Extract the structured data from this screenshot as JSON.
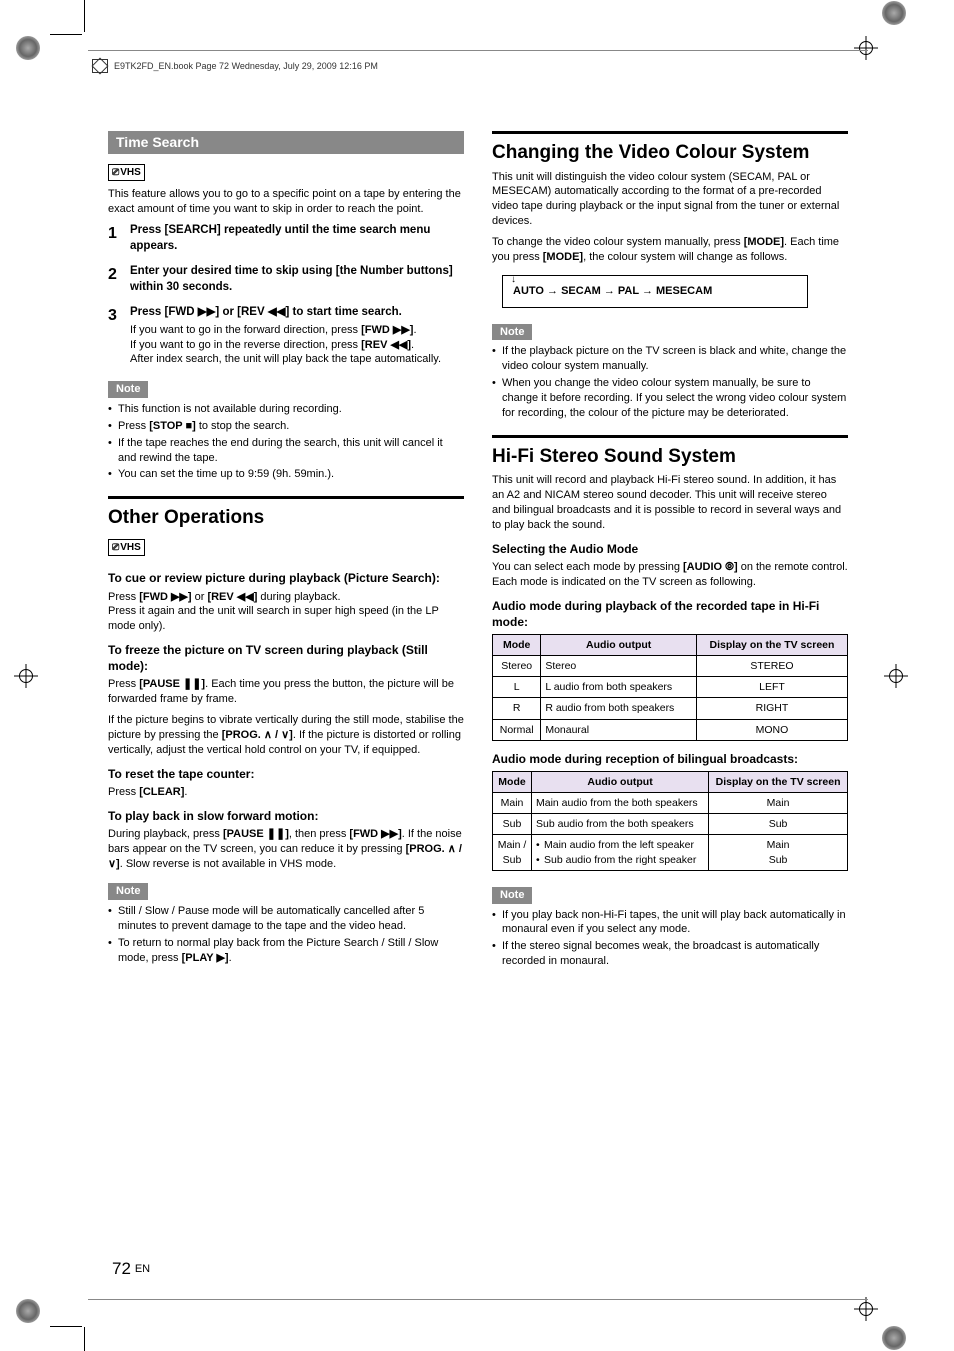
{
  "header": {
    "text": "E9TK2FD_EN.book   Page 72   Wednesday, July 29, 2009   12:16 PM"
  },
  "page": {
    "number": "72",
    "lang": "EN"
  },
  "left": {
    "time_search": {
      "heading": "Time Search",
      "vhs": "VHS",
      "intro": "This feature allows you to go to a specific point on a tape by entering the exact amount of time you want to skip in order to reach the point.",
      "steps": [
        {
          "num": "1",
          "title": "Press [SEARCH] repeatedly until the time search menu appears."
        },
        {
          "num": "2",
          "title": "Enter your desired time to skip using [the Number buttons] within 30 seconds."
        },
        {
          "num": "3",
          "title": "Press [FWD ▶▶] or [REV ◀◀] to start time search.",
          "detail1": "If you want to go in the forward direction, press ",
          "detail1_bold": "[FWD ▶▶]",
          "detail2a": "If you want to go in the reverse direction, press ",
          "detail2a_bold": "[REV ◀◀]",
          "detail2b": "After index search, the unit will play back the tape automatically."
        }
      ],
      "note_label": "Note",
      "notes": [
        "This function is not available during recording.",
        "Press [STOP ■] to stop the search.",
        "If the tape reaches the end during the search, this unit will cancel it and rewind the tape.",
        "You can set the time up to 9:59 (9h. 59min.)."
      ]
    },
    "other_ops": {
      "heading": "Other Operations",
      "vhs": "VHS",
      "cue": {
        "title": "To cue or review picture during playback (Picture Search):",
        "body1a": "Press ",
        "body1b": "[FWD ▶▶]",
        "body1c": " or ",
        "body1d": "[REV ◀◀]",
        "body1e": " during playback.",
        "body2": "Press it again and the unit will search in super high speed (in the LP mode only)."
      },
      "freeze": {
        "title": "To freeze the picture on TV screen during playback (Still mode):",
        "body1a": "Press ",
        "body1b": "[PAUSE ❚❚]",
        "body1c": ". Each time you press the button, the picture will be forwarded frame by frame.",
        "body2a": "If the picture begins to vibrate vertically during the still mode, stabilise the picture by pressing the ",
        "body2b": "[PROG. ∧ / ∨]",
        "body2c": ". If the picture is distorted or rolling vertically, adjust the vertical hold control on your TV, if equipped."
      },
      "reset": {
        "title": "To reset the tape counter:",
        "bodya": "Press ",
        "bodyb": "[CLEAR]",
        "bodyc": "."
      },
      "slow": {
        "title": "To play back in slow forward motion:",
        "bodya": "During playback, press ",
        "bodyb": "[PAUSE ❚❚]",
        "bodyc": ", then press ",
        "bodyd": "[FWD ▶▶]",
        "bodye": ". If the noise bars appear on the TV screen, you can reduce it by pressing ",
        "bodyf": "[PROG. ∧ / ∨]",
        "bodyg": ". Slow reverse is not available in VHS mode."
      },
      "note_label": "Note",
      "notes": [
        "Still / Slow / Pause mode will be automatically cancelled after 5 minutes to prevent damage to the tape and the video head.",
        "To return to normal play back from the Picture Search / Still / Slow mode, press [PLAY ▶]."
      ]
    }
  },
  "right": {
    "colour": {
      "heading": "Changing the Video Colour System",
      "p1": "This unit will distinguish the video colour system (SECAM, PAL or MESECAM) automatically according to the format of a pre-recorded video tape during playback or the input signal from the tuner or external devices.",
      "p2a": "To change the video colour system manually, press ",
      "p2b": "[MODE]",
      "p2c": ". Each time you press ",
      "p2d": "[MODE]",
      "p2e": ", the colour system will change as follows.",
      "cycle": "AUTO → SECAM → PAL → MESECAM",
      "note_label": "Note",
      "notes": [
        "If the playback picture on the TV screen is black and white, change the video colour system manually.",
        "When you change the video colour system manually, be sure to change it before recording. If you select the wrong video colour system for recording, the colour of the picture may be deteriorated."
      ]
    },
    "hifi": {
      "heading": "Hi-Fi Stereo Sound System",
      "p1": "This unit will record and playback Hi-Fi stereo sound. In addition, it has an A2 and NICAM stereo sound decoder. This unit will receive stereo and bilingual broadcasts and it is possible to record in several ways and to play back the sound.",
      "select_title": "Selecting the Audio Mode",
      "select_p_a": "You can select each mode by pressing ",
      "select_p_b": "[AUDIO ⦾]",
      "select_p_c": " on the remote control. Each mode is indicated on the TV screen as following.",
      "table1_caption": "Audio mode during playback of the recorded tape in Hi-Fi mode:",
      "table1": {
        "headers": [
          "Mode",
          "Audio output",
          "Display on the TV screen"
        ],
        "header_bg": "#e8e0f0",
        "rows": [
          [
            "Stereo",
            "Stereo",
            "STEREO"
          ],
          [
            "L",
            "L audio from both speakers",
            "LEFT"
          ],
          [
            "R",
            "R audio from both speakers",
            "RIGHT"
          ],
          [
            "Normal",
            "Monaural",
            "MONO"
          ]
        ]
      },
      "table2_caption": "Audio mode during reception of bilingual broadcasts:",
      "table2": {
        "headers": [
          "Mode",
          "Audio output",
          "Display on the TV screen"
        ],
        "header_bg": "#e8e0f0",
        "rows_simple": [
          [
            "Main",
            "Main audio from the both speakers",
            "Main"
          ],
          [
            "Sub",
            "Sub audio from the both speakers",
            "Sub"
          ]
        ],
        "row_complex": {
          "mode1": "Main /",
          "mode2": "Sub",
          "out1": "Main audio from the left speaker",
          "out2": "Sub audio from the right speaker",
          "disp1": "Main",
          "disp2": "Sub"
        }
      },
      "note_label": "Note",
      "notes": [
        "If you play back non-Hi-Fi tapes, the unit will play back automatically in monaural even if you select any mode.",
        "If the stereo signal becomes weak, the broadcast is automatically recorded in monaural."
      ]
    }
  }
}
